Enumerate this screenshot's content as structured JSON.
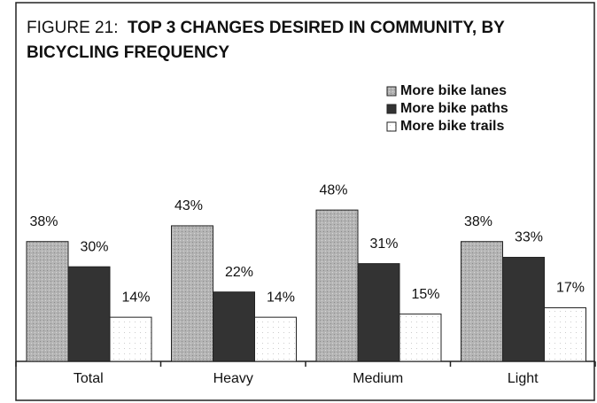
{
  "chart_data": {
    "type": "bar",
    "figure_label": "FIGURE 21:",
    "title": "TOP 3 CHANGES DESIRED IN COMMUNITY, BY BICYCLING FREQUENCY",
    "categories": [
      "Total",
      "Heavy",
      "Medium",
      "Light"
    ],
    "series": [
      {
        "name": "More bike lanes",
        "color": "#b4b4b4",
        "values": [
          38,
          43,
          48,
          38
        ],
        "value_labels": [
          "38%",
          "43%",
          "48%",
          "38%"
        ]
      },
      {
        "name": "More bike paths",
        "color": "#333333",
        "values": [
          30,
          22,
          31,
          33
        ],
        "value_labels": [
          "30%",
          "22%",
          "31%",
          "33%"
        ]
      },
      {
        "name": "More bike trails",
        "color": "#ffffff",
        "values": [
          14,
          14,
          15,
          17
        ],
        "value_labels": [
          "14%",
          "14%",
          "15%",
          "17%"
        ]
      }
    ],
    "legend": "upper right"
  }
}
